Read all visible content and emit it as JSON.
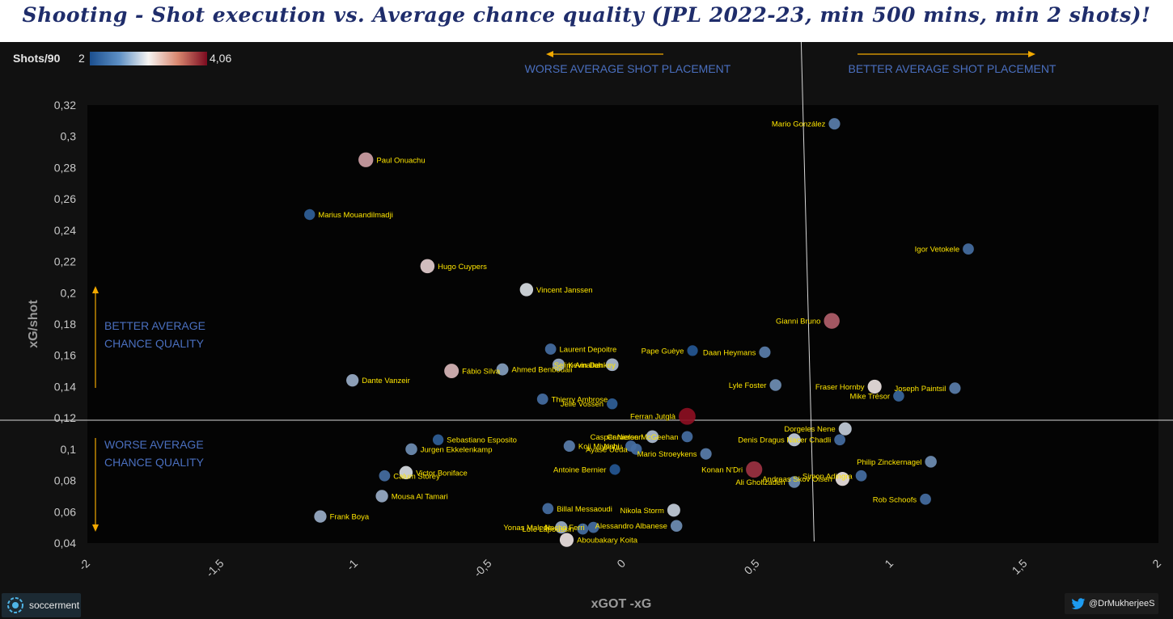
{
  "title": "Shooting - Shot execution vs. Average chance quality (JPL 2022-23, min 500 mins, min 2 shots)!",
  "colorbar": {
    "label": "Shots/90",
    "min": "2",
    "max": "4,06",
    "min_value": 2,
    "max_value": 4.06
  },
  "annotations": {
    "worse_placement": "WORSE AVERAGE  SHOT PLACEMENT",
    "better_placement": "BETTER AVERAGE SHOT PLACEMENT",
    "better_quality_1": "BETTER AVERAGE",
    "better_quality_2": "CHANCE QUALITY",
    "worse_quality_1": "WORSE AVERAGE",
    "worse_quality_2": "CHANCE QUALITY"
  },
  "footer": {
    "logo_text": "soccerment",
    "twitter": "@DrMukherjeeS",
    "logo_icon": "soccerment-logo-icon",
    "twitter_icon": "twitter-bird-icon"
  },
  "colors": {
    "low": "#1e5a9a",
    "mid": "#f3f1ef",
    "high": "#8c0f22",
    "background": "#111111",
    "title": "#1f2d6b",
    "label": "#ffe600",
    "annotation": "#4a6fbf",
    "arrow": "#f2a900"
  },
  "chart_data": {
    "type": "scatter",
    "xlabel": "xGOT -xG",
    "ylabel": "xG/shot",
    "xlim": [
      -2,
      2
    ],
    "ylim": [
      0.04,
      0.32
    ],
    "xticks": [
      -2,
      -1.5,
      -1,
      -0.5,
      0,
      0.5,
      1,
      1.5,
      2
    ],
    "xtick_labels": [
      "-2",
      "-1,5",
      "-1",
      "-0,5",
      "0",
      "0,5",
      "1",
      "1,5",
      "2"
    ],
    "yticks": [
      0.04,
      0.06,
      0.08,
      0.1,
      0.12,
      0.14,
      0.16,
      0.18,
      0.2,
      0.22,
      0.24,
      0.26,
      0.28,
      0.3,
      0.32
    ],
    "ytick_labels": [
      "0,04",
      "0,06",
      "0,08",
      "0,1",
      "0,12",
      "0,14",
      "0,16",
      "0,18",
      "0,2",
      "0,22",
      "0,24",
      "0,26",
      "0,28",
      "0,3",
      "0,32"
    ],
    "mean_lines": {
      "x": 0.69,
      "y": 0.1185
    },
    "grid": false,
    "points": [
      {
        "name": "Mario González",
        "x": 0.79,
        "y": 0.308,
        "shots90": 2.3,
        "label_side": "left"
      },
      {
        "name": "Paul Onuachu",
        "x": -0.96,
        "y": 0.285,
        "shots90": 3.4,
        "label_side": "right"
      },
      {
        "name": "Marius Mouandilmadji",
        "x": -1.17,
        "y": 0.25,
        "shots90": 2.1,
        "label_side": "right"
      },
      {
        "name": "Igor Vetokele",
        "x": 1.29,
        "y": 0.228,
        "shots90": 2.2,
        "label_side": "left"
      },
      {
        "name": "Hugo Cuypers",
        "x": -0.73,
        "y": 0.217,
        "shots90": 3.2,
        "label_side": "right"
      },
      {
        "name": "Vincent Janssen",
        "x": -0.36,
        "y": 0.202,
        "shots90": 2.9,
        "label_side": "right"
      },
      {
        "name": "Gianni Bruno",
        "x": 0.78,
        "y": 0.182,
        "shots90": 3.7,
        "label_side": "left"
      },
      {
        "name": "Laurent Depoitre",
        "x": -0.27,
        "y": 0.164,
        "shots90": 2.2,
        "label_side": "right"
      },
      {
        "name": "Pape Guèye",
        "x": 0.26,
        "y": 0.163,
        "shots90": 2.05,
        "label_side": "left"
      },
      {
        "name": "Daan Heymans",
        "x": 0.53,
        "y": 0.162,
        "shots90": 2.3,
        "label_side": "left"
      },
      {
        "name": "Kevin Denkey",
        "x": -0.24,
        "y": 0.154,
        "shots90": 2.6,
        "label_side": "right"
      },
      {
        "name": "Selim Amallah",
        "x": -0.04,
        "y": 0.154,
        "shots90": 2.7,
        "label_side": "left"
      },
      {
        "name": "Ahmed Benbouali",
        "x": -0.45,
        "y": 0.151,
        "shots90": 2.5,
        "label_side": "right"
      },
      {
        "name": "Fábio Silva",
        "x": -0.64,
        "y": 0.15,
        "shots90": 3.3,
        "label_side": "right"
      },
      {
        "name": "Dante Vanzeir",
        "x": -1.01,
        "y": 0.144,
        "shots90": 2.6,
        "label_side": "right"
      },
      {
        "name": "Lyle Foster",
        "x": 0.57,
        "y": 0.141,
        "shots90": 2.4,
        "label_side": "left"
      },
      {
        "name": "Fraser Hornby",
        "x": 0.94,
        "y": 0.14,
        "shots90": 3.1,
        "label_side": "left"
      },
      {
        "name": "Joseph Paintsil",
        "x": 1.24,
        "y": 0.139,
        "shots90": 2.3,
        "label_side": "left"
      },
      {
        "name": "Mike Trésor",
        "x": 1.03,
        "y": 0.134,
        "shots90": 2.15,
        "label_side": "left"
      },
      {
        "name": "Thierry Ambrose",
        "x": -0.3,
        "y": 0.132,
        "shots90": 2.2,
        "label_side": "right"
      },
      {
        "name": "Jelle Vossen",
        "x": -0.04,
        "y": 0.129,
        "shots90": 2.1,
        "label_side": "left"
      },
      {
        "name": "Ferran Jutglà",
        "x": 0.24,
        "y": 0.121,
        "shots90": 4.06,
        "label_side": "left"
      },
      {
        "name": "Dorgeles Nene",
        "x": 0.83,
        "y": 0.113,
        "shots90": 2.8,
        "label_side": "left"
      },
      {
        "name": "Casper Nielsen",
        "x": 0.11,
        "y": 0.108,
        "shots90": 2.7,
        "label_side": "left"
      },
      {
        "name": "Cameron McGeehan",
        "x": 0.24,
        "y": 0.108,
        "shots90": 2.2,
        "label_side": "left"
      },
      {
        "name": "Denis Dragus",
        "x": 0.64,
        "y": 0.106,
        "shots90": 2.8,
        "label_side": "left"
      },
      {
        "name": "Nacer Chadli",
        "x": 0.81,
        "y": 0.106,
        "shots90": 2.2,
        "label_side": "left"
      },
      {
        "name": "Sebastiano Esposito",
        "x": -0.69,
        "y": 0.106,
        "shots90": 2.1,
        "label_side": "right"
      },
      {
        "name": "Koji Miyoshi",
        "x": -0.2,
        "y": 0.102,
        "shots90": 2.3,
        "label_side": "right"
      },
      {
        "name": "Nuhu",
        "x": 0.03,
        "y": 0.102,
        "shots90": 2.2,
        "label_side": "left"
      },
      {
        "name": "Ayase Ueda",
        "x": 0.05,
        "y": 0.1,
        "shots90": 2.2,
        "label_side": "left"
      },
      {
        "name": "Jurgen Ekkelenkamp",
        "x": -0.79,
        "y": 0.1,
        "shots90": 2.4,
        "label_side": "right"
      },
      {
        "name": "Mario Stroeykens",
        "x": 0.31,
        "y": 0.097,
        "shots90": 2.3,
        "label_side": "left"
      },
      {
        "name": "Philip Zinckernagel",
        "x": 1.15,
        "y": 0.092,
        "shots90": 2.4,
        "label_side": "left"
      },
      {
        "name": "Konan N'Dri",
        "x": 0.49,
        "y": 0.087,
        "shots90": 3.9,
        "label_side": "left"
      },
      {
        "name": "Antoine Bernier",
        "x": -0.03,
        "y": 0.087,
        "shots90": 2.05,
        "label_side": "left"
      },
      {
        "name": "Victor Boniface",
        "x": -0.81,
        "y": 0.085,
        "shots90": 2.9,
        "label_side": "right"
      },
      {
        "name": "Simon Adingra",
        "x": 0.89,
        "y": 0.083,
        "shots90": 2.2,
        "label_side": "left"
      },
      {
        "name": "Calum Storey",
        "x": -0.89,
        "y": 0.083,
        "shots90": 2.2,
        "label_side": "right"
      },
      {
        "name": "Andreas Skov Olsen",
        "x": 0.82,
        "y": 0.081,
        "shots90": 3.1,
        "label_side": "left"
      },
      {
        "name": "Ali Gholizadeh",
        "x": 0.64,
        "y": 0.079,
        "shots90": 2.4,
        "label_side": "left"
      },
      {
        "name": "Mousa Al Tamari",
        "x": -0.9,
        "y": 0.07,
        "shots90": 2.6,
        "label_side": "right"
      },
      {
        "name": "Rob Schoofs",
        "x": 1.13,
        "y": 0.068,
        "shots90": 2.2,
        "label_side": "left"
      },
      {
        "name": "Billal Messaoudi",
        "x": -0.28,
        "y": 0.062,
        "shots90": 2.2,
        "label_side": "right"
      },
      {
        "name": "Nikola Storm",
        "x": 0.19,
        "y": 0.061,
        "shots90": 2.8,
        "label_side": "left"
      },
      {
        "name": "Frank Boya",
        "x": -1.13,
        "y": 0.057,
        "shots90": 2.6,
        "label_side": "right"
      },
      {
        "name": "Alessandro Albanese",
        "x": 0.2,
        "y": 0.051,
        "shots90": 2.4,
        "label_side": "left"
      },
      {
        "name": "Yonas Malede",
        "x": -0.23,
        "y": 0.05,
        "shots90": 2.6,
        "label_side": "left"
      },
      {
        "name": "Nacho Ferri",
        "x": -0.11,
        "y": 0.05,
        "shots90": 2.2,
        "label_side": "left"
      },
      {
        "name": "Loïc Lapoussin",
        "x": -0.15,
        "y": 0.049,
        "shots90": 2.2,
        "label_side": "left"
      },
      {
        "name": "Aboubakary Koita",
        "x": -0.21,
        "y": 0.042,
        "shots90": 3.1,
        "label_side": "right"
      }
    ]
  }
}
